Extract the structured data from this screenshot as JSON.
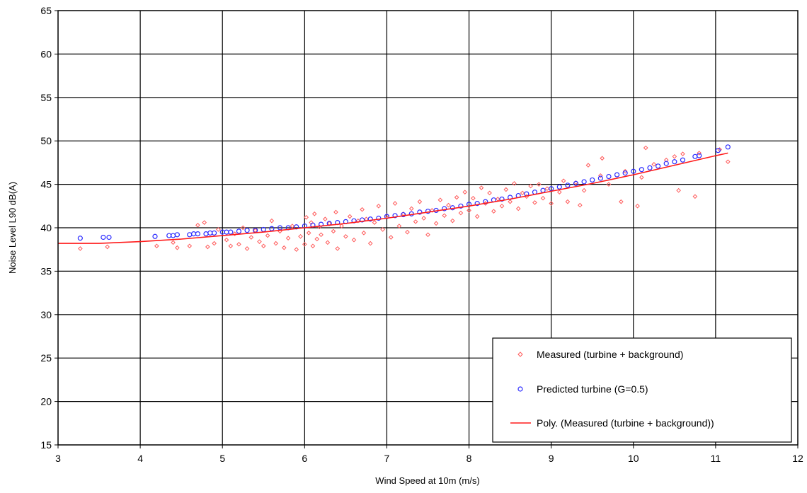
{
  "chart_data": {
    "type": "scatter",
    "xlabel": "Wind Speed at 10m (m/s)",
    "ylabel": "Noise Level L90 dB(A)",
    "xlim": [
      3,
      12
    ],
    "ylim": [
      15,
      65
    ],
    "xticks": [
      "3",
      "4",
      "5",
      "6",
      "7",
      "8",
      "9",
      "10",
      "11",
      "12"
    ],
    "yticks": [
      "15",
      "20",
      "25",
      "30",
      "35",
      "40",
      "45",
      "50",
      "55",
      "60",
      "65"
    ],
    "grid": true,
    "legend_position": "bottom-right",
    "series": [
      {
        "name": "Measured (turbine + background)",
        "marker": "diamond",
        "color": "#ff5a5a",
        "points": [
          [
            3.27,
            37.6
          ],
          [
            3.6,
            37.8
          ],
          [
            4.2,
            37.9
          ],
          [
            4.4,
            38.3
          ],
          [
            4.45,
            37.7
          ],
          [
            4.6,
            37.9
          ],
          [
            4.7,
            40.3
          ],
          [
            4.78,
            40.6
          ],
          [
            4.82,
            37.8
          ],
          [
            4.9,
            38.2
          ],
          [
            4.95,
            39.8
          ],
          [
            5.05,
            38.6
          ],
          [
            5.1,
            37.9
          ],
          [
            5.15,
            39.3
          ],
          [
            5.2,
            38.1
          ],
          [
            5.25,
            40.0
          ],
          [
            5.3,
            37.6
          ],
          [
            5.35,
            38.9
          ],
          [
            5.4,
            39.7
          ],
          [
            5.45,
            38.4
          ],
          [
            5.5,
            37.9
          ],
          [
            5.55,
            39.1
          ],
          [
            5.6,
            40.8
          ],
          [
            5.65,
            38.2
          ],
          [
            5.7,
            39.6
          ],
          [
            5.75,
            37.7
          ],
          [
            5.8,
            38.8
          ],
          [
            5.85,
            40.2
          ],
          [
            5.9,
            37.5
          ],
          [
            5.95,
            39.0
          ],
          [
            6.0,
            38.1
          ],
          [
            6.02,
            41.2
          ],
          [
            6.05,
            39.4
          ],
          [
            6.08,
            40.6
          ],
          [
            6.1,
            37.9
          ],
          [
            6.12,
            41.6
          ],
          [
            6.15,
            38.7
          ],
          [
            6.18,
            40.1
          ],
          [
            6.2,
            39.2
          ],
          [
            6.25,
            41.0
          ],
          [
            6.28,
            38.3
          ],
          [
            6.3,
            40.5
          ],
          [
            6.35,
            39.6
          ],
          [
            6.38,
            41.8
          ],
          [
            6.4,
            37.6
          ],
          [
            6.45,
            40.2
          ],
          [
            6.5,
            39.0
          ],
          [
            6.55,
            41.3
          ],
          [
            6.6,
            38.6
          ],
          [
            6.65,
            40.8
          ],
          [
            6.7,
            42.1
          ],
          [
            6.72,
            39.4
          ],
          [
            6.75,
            41.0
          ],
          [
            6.8,
            38.2
          ],
          [
            6.85,
            40.6
          ],
          [
            6.9,
            42.5
          ],
          [
            6.95,
            39.8
          ],
          [
            7.0,
            41.4
          ],
          [
            7.05,
            38.9
          ],
          [
            7.1,
            42.8
          ],
          [
            7.15,
            40.2
          ],
          [
            7.2,
            41.6
          ],
          [
            7.25,
            39.5
          ],
          [
            7.3,
            42.2
          ],
          [
            7.35,
            40.7
          ],
          [
            7.4,
            43.0
          ],
          [
            7.45,
            41.1
          ],
          [
            7.5,
            39.2
          ],
          [
            7.55,
            42.0
          ],
          [
            7.6,
            40.5
          ],
          [
            7.65,
            43.2
          ],
          [
            7.7,
            41.4
          ],
          [
            7.75,
            42.6
          ],
          [
            7.8,
            40.8
          ],
          [
            7.85,
            43.5
          ],
          [
            7.9,
            41.7
          ],
          [
            7.95,
            44.1
          ],
          [
            8.0,
            42.0
          ],
          [
            8.05,
            43.4
          ],
          [
            8.1,
            41.3
          ],
          [
            8.15,
            44.6
          ],
          [
            8.2,
            42.8
          ],
          [
            8.25,
            44.0
          ],
          [
            8.3,
            41.9
          ],
          [
            8.35,
            43.3
          ],
          [
            8.4,
            42.5
          ],
          [
            8.45,
            44.4
          ],
          [
            8.5,
            43.0
          ],
          [
            8.55,
            45.1
          ],
          [
            8.6,
            42.2
          ],
          [
            8.65,
            44.0
          ],
          [
            8.7,
            43.6
          ],
          [
            8.75,
            44.8
          ],
          [
            8.8,
            42.9
          ],
          [
            8.85,
            45.0
          ],
          [
            8.9,
            43.4
          ],
          [
            8.95,
            44.5
          ],
          [
            9.0,
            42.8
          ],
          [
            9.1,
            44.1
          ],
          [
            9.15,
            45.4
          ],
          [
            9.2,
            43.0
          ],
          [
            9.3,
            45.2
          ],
          [
            9.35,
            42.6
          ],
          [
            9.4,
            44.3
          ],
          [
            9.45,
            47.2
          ],
          [
            9.6,
            46.0
          ],
          [
            9.62,
            48.0
          ],
          [
            9.7,
            45.0
          ],
          [
            9.85,
            43.0
          ],
          [
            9.9,
            46.5
          ],
          [
            10.05,
            42.5
          ],
          [
            10.1,
            45.8
          ],
          [
            10.15,
            49.2
          ],
          [
            10.25,
            47.3
          ],
          [
            10.4,
            47.8
          ],
          [
            10.5,
            48.2
          ],
          [
            10.55,
            44.3
          ],
          [
            10.6,
            48.5
          ],
          [
            10.75,
            43.6
          ],
          [
            10.8,
            48.6
          ],
          [
            11.05,
            49.0
          ],
          [
            11.15,
            47.6
          ]
        ]
      },
      {
        "name": "Predicted turbine (G=0.5)",
        "marker": "circle",
        "color": "#2b2bff",
        "points": [
          [
            3.27,
            38.8
          ],
          [
            3.55,
            38.9
          ],
          [
            3.62,
            38.9
          ],
          [
            4.18,
            39.0
          ],
          [
            4.35,
            39.1
          ],
          [
            4.4,
            39.1
          ],
          [
            4.45,
            39.2
          ],
          [
            4.6,
            39.2
          ],
          [
            4.65,
            39.3
          ],
          [
            4.7,
            39.3
          ],
          [
            4.8,
            39.3
          ],
          [
            4.85,
            39.4
          ],
          [
            4.9,
            39.4
          ],
          [
            5.0,
            39.5
          ],
          [
            5.05,
            39.5
          ],
          [
            5.1,
            39.5
          ],
          [
            5.2,
            39.6
          ],
          [
            5.3,
            39.7
          ],
          [
            5.4,
            39.7
          ],
          [
            5.5,
            39.8
          ],
          [
            5.6,
            39.9
          ],
          [
            5.7,
            40.0
          ],
          [
            5.8,
            40.0
          ],
          [
            5.9,
            40.1
          ],
          [
            6.0,
            40.2
          ],
          [
            6.1,
            40.3
          ],
          [
            6.2,
            40.4
          ],
          [
            6.3,
            40.5
          ],
          [
            6.4,
            40.6
          ],
          [
            6.5,
            40.7
          ],
          [
            6.6,
            40.8
          ],
          [
            6.7,
            40.9
          ],
          [
            6.8,
            41.0
          ],
          [
            6.9,
            41.1
          ],
          [
            7.0,
            41.3
          ],
          [
            7.1,
            41.4
          ],
          [
            7.2,
            41.5
          ],
          [
            7.3,
            41.6
          ],
          [
            7.4,
            41.8
          ],
          [
            7.5,
            41.9
          ],
          [
            7.6,
            42.0
          ],
          [
            7.7,
            42.2
          ],
          [
            7.8,
            42.3
          ],
          [
            7.9,
            42.5
          ],
          [
            8.0,
            42.7
          ],
          [
            8.1,
            42.8
          ],
          [
            8.2,
            43.0
          ],
          [
            8.3,
            43.2
          ],
          [
            8.4,
            43.3
          ],
          [
            8.5,
            43.5
          ],
          [
            8.6,
            43.7
          ],
          [
            8.7,
            43.9
          ],
          [
            8.8,
            44.1
          ],
          [
            8.9,
            44.3
          ],
          [
            9.0,
            44.5
          ],
          [
            9.1,
            44.7
          ],
          [
            9.2,
            44.9
          ],
          [
            9.3,
            45.1
          ],
          [
            9.4,
            45.3
          ],
          [
            9.5,
            45.5
          ],
          [
            9.6,
            45.7
          ],
          [
            9.7,
            45.9
          ],
          [
            9.8,
            46.1
          ],
          [
            9.9,
            46.3
          ],
          [
            10.0,
            46.5
          ],
          [
            10.1,
            46.7
          ],
          [
            10.2,
            46.9
          ],
          [
            10.3,
            47.1
          ],
          [
            10.4,
            47.4
          ],
          [
            10.5,
            47.6
          ],
          [
            10.6,
            47.8
          ],
          [
            10.75,
            48.2
          ],
          [
            10.8,
            48.3
          ],
          [
            11.03,
            48.9
          ],
          [
            11.15,
            49.3
          ]
        ]
      },
      {
        "name": "Poly. (Measured (turbine + background))",
        "marker": "line",
        "color": "#ff1a1a",
        "x": [
          3.0,
          3.5,
          4.0,
          4.5,
          5.0,
          5.5,
          6.0,
          6.5,
          7.0,
          7.5,
          8.0,
          8.5,
          9.0,
          9.5,
          10.0,
          10.5,
          11.0,
          11.15
        ],
        "y": [
          38.2,
          38.2,
          38.4,
          38.7,
          39.1,
          39.5,
          40.0,
          40.5,
          41.1,
          41.8,
          42.5,
          43.3,
          44.2,
          45.1,
          46.1,
          47.2,
          48.3,
          48.6
        ]
      }
    ]
  }
}
